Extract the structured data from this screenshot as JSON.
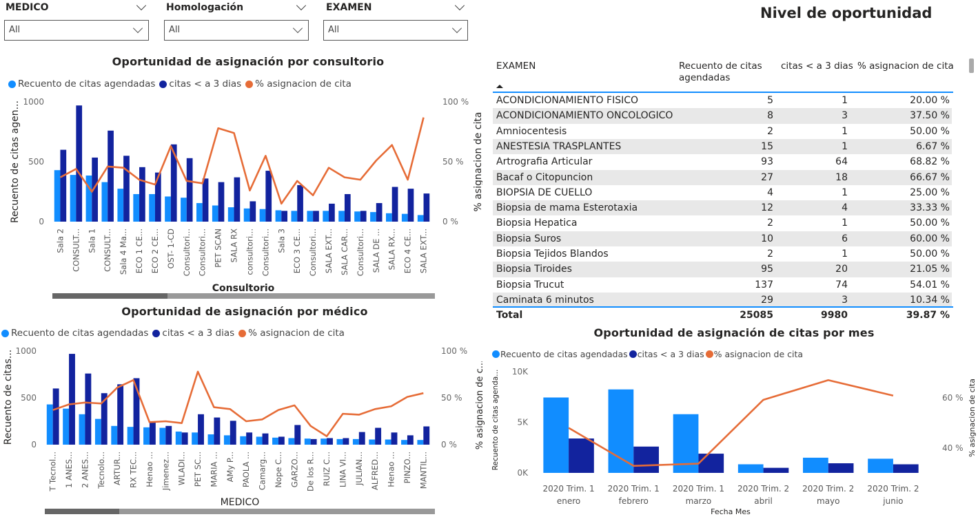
{
  "slicers": [
    {
      "title": "MEDICO",
      "value": "All"
    },
    {
      "title": "Homologación",
      "value": "All"
    },
    {
      "title": "EXAMEN",
      "value": "All"
    }
  ],
  "page_title": "Nivel de oportunidad",
  "colors": {
    "light_blue": "#118dff",
    "dark_blue": "#12239e",
    "orange": "#e66c37",
    "grid": "#e0e0e0"
  },
  "legend": {
    "count": "Recuento de citas agendadas",
    "under3": "citas < a 3 dias",
    "pct": "% asignacion de cita"
  },
  "chart_consultorio": {
    "title": "Oportunidad de asignación por consultorio",
    "chart_data": {
      "type": "bar+line",
      "title": "Oportunidad de asignación por consultorio",
      "xlabel": "Consultorio",
      "ylabel": "Recuento de citas agen...",
      "y2label": "% asignacion de cita",
      "y_ticks": [
        "1000",
        "500",
        "0"
      ],
      "y2_ticks": [
        "100 %",
        "50 %",
        "0 %"
      ],
      "ylim": [
        0,
        1000
      ],
      "y2lim": [
        0,
        100
      ],
      "categories": [
        "Sala 2",
        "CONSULT...",
        "Sala 1",
        "CONSULT...",
        "Sala 4 Ma...",
        "ECO 1 CE...",
        "ECO 2 CE...",
        "OST- 1-CD",
        "Consultori...",
        "Consultori...",
        "PET SCAN",
        "SALA RX",
        "consultori...",
        "Consultori...",
        "Sala 3",
        "ECO 3 CE...",
        "Consultori...",
        "SALA EXT...",
        "SALA CAR...",
        "Consultori...",
        "SALA DE ...",
        "SALA RX...",
        "ECO 4 CE...",
        "SALA EXT..."
      ],
      "series": [
        {
          "name": "Recuento de citas agendadas",
          "values": [
            430,
            390,
            385,
            330,
            275,
            230,
            230,
            210,
            200,
            155,
            135,
            120,
            110,
            105,
            95,
            90,
            90,
            90,
            90,
            85,
            80,
            70,
            65,
            55
          ]
        },
        {
          "name": "citas < a 3 dias",
          "values": [
            600,
            970,
            535,
            760,
            550,
            455,
            410,
            645,
            530,
            360,
            330,
            370,
            170,
            425,
            90,
            305,
            90,
            150,
            230,
            90,
            155,
            290,
            275,
            235
          ]
        },
        {
          "name": "% asignacion de cita",
          "values": [
            37,
            44,
            25,
            46,
            45,
            35,
            31,
            63,
            34,
            32,
            78,
            74,
            26,
            55,
            15,
            34,
            22,
            45,
            37,
            35,
            51,
            64,
            35,
            87
          ]
        }
      ]
    }
  },
  "chart_medico": {
    "title": "Oportunidad de asignación por médico",
    "chart_data": {
      "type": "bar+line",
      "title": "Oportunidad de asignación por médico",
      "xlabel": "MEDICO",
      "ylabel": "Recuento de citas...",
      "y_ticks": [
        "1000",
        "500",
        "0"
      ],
      "y2_ticks": [
        "100 %",
        "50 %",
        "0 %"
      ],
      "ylim": [
        0,
        1000
      ],
      "y2lim": [
        0,
        100
      ],
      "categories": [
        "T Tecnol...",
        "1 ANES...",
        "2 ANES...",
        "Tecnolo...",
        "ARTUR...",
        "RX TEC...",
        "Henao ...",
        "Jimenez...",
        "WLADI...",
        "PET SC...",
        "MARIA ...",
        "AMy P...",
        "PAOLA ...",
        "Camarg...",
        "Nope C...",
        "GARZO...",
        "De los R...",
        "RUIZ C...",
        "LINA VI...",
        "JULIAN...",
        "ALFRED...",
        "Henao ...",
        "PINZO...",
        "MANTIL..."
      ],
      "series": [
        {
          "name": "Recuento de citas agendadas",
          "values": [
            430,
            385,
            325,
            275,
            200,
            190,
            185,
            180,
            140,
            130,
            110,
            100,
            90,
            85,
            75,
            70,
            65,
            65,
            60,
            60,
            55,
            55,
            50,
            50
          ]
        },
        {
          "name": "citas < a 3 dias",
          "values": [
            600,
            970,
            760,
            550,
            645,
            710,
            235,
            200,
            130,
            325,
            290,
            255,
            130,
            120,
            85,
            210,
            60,
            70,
            70,
            135,
            180,
            130,
            100,
            195
          ]
        },
        {
          "name": "% asignacion de cita",
          "values": [
            37,
            43,
            45,
            44,
            61,
            69,
            24,
            25,
            23,
            78,
            40,
            38,
            25,
            27,
            37,
            42,
            20,
            9,
            33,
            32,
            38,
            41,
            51,
            55
          ]
        }
      ]
    }
  },
  "table": {
    "headers": [
      "EXAMEN",
      "Recuento de citas agendadas",
      "citas < a 3 dias",
      "% asignacion de cita"
    ],
    "rows": [
      [
        "ACONDICIONAMIENTO FISICO",
        "5",
        "1",
        "20.00 %"
      ],
      [
        "ACONDICIONAMIENTO ONCOLOGICO",
        "8",
        "3",
        "37.50 %"
      ],
      [
        "Amniocentesis",
        "2",
        "1",
        "50.00 %"
      ],
      [
        "ANESTESIA TRASPLANTES",
        "15",
        "1",
        "6.67 %"
      ],
      [
        "Artrografia Articular",
        "93",
        "64",
        "68.82 %"
      ],
      [
        "Bacaf o Citopuncion",
        "27",
        "18",
        "66.67 %"
      ],
      [
        "BIOPSIA DE CUELLO",
        "4",
        "1",
        "25.00 %"
      ],
      [
        "Biopsia de mama Esterotaxia",
        "12",
        "4",
        "33.33 %"
      ],
      [
        "Biopsia Hepatica",
        "2",
        "1",
        "50.00 %"
      ],
      [
        "Biopsia Suros",
        "10",
        "6",
        "60.00 %"
      ],
      [
        "Biopsia Tejidos Blandos",
        "2",
        "1",
        "50.00 %"
      ],
      [
        "Biopsia Tiroides",
        "95",
        "20",
        "21.05 %"
      ],
      [
        "Biopsia Trucut",
        "137",
        "74",
        "54.01 %"
      ],
      [
        "Caminata 6 minutos",
        "29",
        "3",
        "10.34 %"
      ]
    ],
    "total": [
      "Total",
      "25085",
      "9980",
      "39.87 %"
    ]
  },
  "chart_mes": {
    "title": "Oportunidad de asignación de citas por mes",
    "chart_data": {
      "type": "bar+line",
      "title": "Oportunidad de asignación de citas por mes",
      "xlabel": "Fecha Mes",
      "ylabel": "Recuento de citas agenda...",
      "outer_ylabel": "% asignacion de c...",
      "y2label": "% asignacion de cita",
      "y_ticks": [
        "10K",
        "5K",
        "0K"
      ],
      "y2_ticks": [
        "60 %",
        "40 %"
      ],
      "ylim": [
        0,
        10000
      ],
      "y2lim": [
        30,
        66
      ],
      "categories": [
        [
          "2020 Trim. 1",
          "enero"
        ],
        [
          "2020 Trim. 1",
          "febrero"
        ],
        [
          "2020 Trim. 1",
          "marzo"
        ],
        [
          "2020 Trim. 2",
          "abril"
        ],
        [
          "2020 Trim. 2",
          "mayo"
        ],
        [
          "2020 Trim. 2",
          "junio"
        ]
      ],
      "series": [
        {
          "name": "Recuento de citas agendadas",
          "values": [
            7450,
            8250,
            5800,
            850,
            1500,
            1400
          ]
        },
        {
          "name": "citas < a 3 dias",
          "values": [
            3400,
            2600,
            1900,
            500,
            950,
            850
          ]
        },
        {
          "name": "% asignacion de cita",
          "values": [
            46,
            32.5,
            33.3,
            56,
            63,
            57.5
          ]
        }
      ]
    }
  }
}
